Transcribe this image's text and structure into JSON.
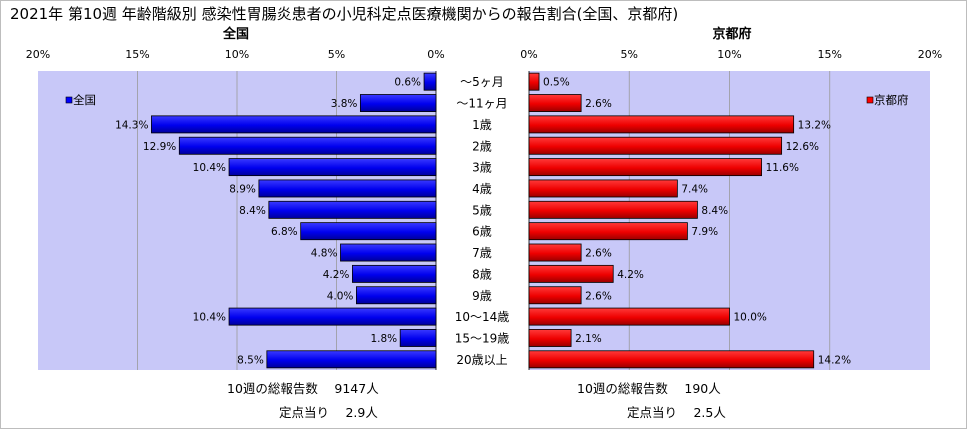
{
  "chart_data": {
    "type": "bar",
    "title": "2021年 第10週 年齢階級別 感染性胃腸炎患者の小児科定点医療機関からの報告割合(全国、京都府)",
    "categories": [
      "～5ヶ月",
      "～11ヶ月",
      "1歳",
      "2歳",
      "3歳",
      "4歳",
      "5歳",
      "6歳",
      "7歳",
      "8歳",
      "9歳",
      "10～14歳",
      "15～19歳",
      "20歳以上"
    ],
    "xlim": [
      0,
      20
    ],
    "ticks": [
      "20%",
      "15%",
      "10%",
      "5%",
      "0%"
    ],
    "ticks_right": [
      "0%",
      "5%",
      "10%",
      "15%",
      "20%"
    ],
    "grid": true,
    "series": [
      {
        "name": "全国",
        "panel_title": "全国",
        "legend": "全国",
        "color": "#0000ff",
        "values": [
          0.6,
          3.8,
          14.3,
          12.9,
          10.4,
          8.9,
          8.4,
          6.8,
          4.8,
          4.2,
          4.0,
          10.4,
          1.8,
          8.5
        ],
        "labels": [
          "0.6%",
          "3.8%",
          "14.3%",
          "12.9%",
          "10.4%",
          "8.9%",
          "8.4%",
          "6.8%",
          "4.8%",
          "4.2%",
          "4.0%",
          "10.4%",
          "1.8%",
          "8.5%"
        ]
      },
      {
        "name": "京都府",
        "panel_title": "京都府",
        "legend": "京都府",
        "color": "#ff0000",
        "values": [
          0.5,
          2.6,
          13.2,
          12.6,
          11.6,
          7.4,
          8.4,
          7.9,
          2.6,
          4.2,
          2.6,
          10.0,
          2.1,
          14.2
        ],
        "labels": [
          "0.5%",
          "2.6%",
          "13.2%",
          "12.6%",
          "11.6%",
          "7.4%",
          "8.4%",
          "7.9%",
          "2.6%",
          "4.2%",
          "2.6%",
          "10.0%",
          "2.1%",
          "14.2%"
        ]
      }
    ]
  },
  "footer": {
    "left_total": "10週の総報告数　 9147人",
    "left_per": "定点当り　 2.9人",
    "right_total": "10週の総報告数　 190人",
    "right_per": "定点当り　 2.5人"
  },
  "colors": {
    "plot_bg": "#c8c8f8",
    "left_bar": "#0000ff",
    "right_bar": "#ff0000",
    "grid": "#9a9a9a"
  }
}
